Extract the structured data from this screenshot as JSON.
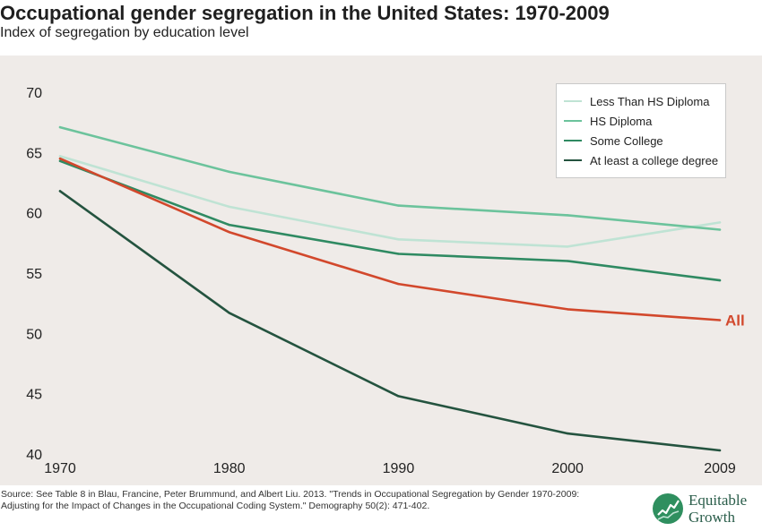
{
  "header": {
    "title": "Occupational gender segregation in the United States: 1970-2009",
    "subtitle": "Index of segregation by education level"
  },
  "chart_data": {
    "type": "line",
    "title": "Occupational gender segregation in the United States: 1970-2009",
    "subtitle": "Index of segregation by education level",
    "xlabel": "",
    "ylabel": "",
    "x": [
      1970,
      1980,
      1990,
      2000,
      2009
    ],
    "x_tick_labels": [
      "1970",
      "1980",
      "1990",
      "2000",
      "2009"
    ],
    "y_ticks": [
      40,
      45,
      50,
      55,
      60,
      65,
      70
    ],
    "y_tick_labels": [
      "40",
      "45",
      "50",
      "55",
      "60",
      "65",
      "70"
    ],
    "ylim": [
      40,
      71
    ],
    "grid": false,
    "legend_position": "top-right",
    "series": [
      {
        "name": "Less Than HS Diploma",
        "color": "#bfe3d4",
        "values": [
          64.7,
          60.5,
          57.8,
          57.2,
          59.2
        ]
      },
      {
        "name": "HS Diploma",
        "color": "#6cc39c",
        "values": [
          67.1,
          63.4,
          60.6,
          59.8,
          58.6
        ]
      },
      {
        "name": "Some College",
        "color": "#2f8a62",
        "values": [
          64.3,
          59.0,
          56.6,
          56.0,
          54.4
        ]
      },
      {
        "name": "At least a college degree",
        "color": "#24533f",
        "values": [
          61.8,
          51.7,
          44.8,
          41.7,
          40.3
        ]
      },
      {
        "name": "All",
        "color": "#d2482c",
        "values": [
          64.5,
          58.4,
          54.1,
          52.0,
          51.1
        ],
        "in_legend": false,
        "end_label": "All"
      }
    ]
  },
  "source": {
    "text": "Source: See Table 8 in Blau, Francine, Peter Brummund, and Albert Liu. 2013. \"Trends in Occupational Segregation by Gender 1970-2009: Adjusting for the Impact of Changes in the Occupational Coding System.\" Demography 50(2): 471-402."
  },
  "logo": {
    "line1": "Equitable",
    "line2": "Growth",
    "icon": "growth-chart-icon"
  }
}
